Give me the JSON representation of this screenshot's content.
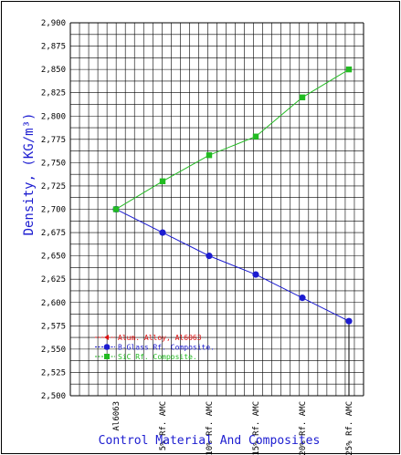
{
  "chart_data": {
    "type": "line",
    "title": "",
    "xlabel": "Control Material And Composites",
    "ylabel": "Density, (KG/m³)",
    "ylim": [
      2500,
      2900
    ],
    "ytick_step": 25,
    "y_ticks": [
      "2,500",
      "2,525",
      "2,550",
      "2,575",
      "2,600",
      "2,625",
      "2,650",
      "2,675",
      "2,700",
      "2,725",
      "2,750",
      "2,775",
      "2,800",
      "2,825",
      "2,850",
      "2,875",
      "2,900"
    ],
    "categories": [
      "Al6063",
      "5% Rf. AMC",
      "10% Rf. AMC",
      "15% Rf. AMC",
      "20% Rf. AMC",
      "25% Rf. AMC"
    ],
    "grid": true,
    "legend_position": "bottom-left",
    "series": [
      {
        "name": "Alum. Alloy, Al6063",
        "color": "#e01010",
        "marker": "triangle",
        "values": [
          2700,
          null,
          null,
          null,
          null,
          null
        ]
      },
      {
        "name": "B-Glass Rf. Composite.",
        "color": "#1c1cd0",
        "marker": "circle",
        "values": [
          2700,
          2675,
          2650,
          2630,
          2605,
          2580
        ]
      },
      {
        "name": "SiC Rf. Composite.",
        "color": "#22bb22",
        "marker": "square",
        "values": [
          2700,
          2730,
          2758,
          2778,
          2820,
          2850
        ]
      }
    ]
  }
}
